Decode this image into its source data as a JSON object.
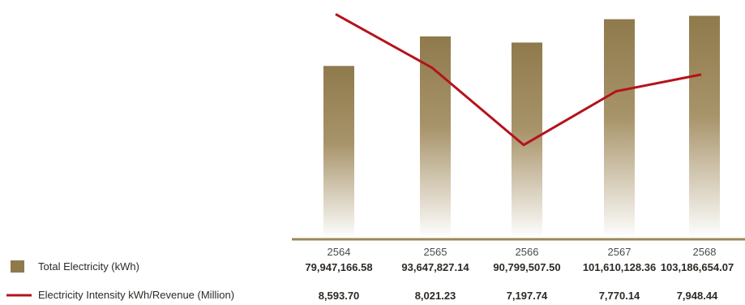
{
  "chart_data": {
    "type": "bar",
    "title": "",
    "xlabel": "",
    "ylabel": "",
    "categories": [
      "2564",
      "2565",
      "2566",
      "2567",
      "2568"
    ],
    "grid": false,
    "legend_position": "bottom-left",
    "series": [
      {
        "name": "Total Electricity (kWh)",
        "type": "bar",
        "color": "#8f7a4c",
        "values": [
          79947166.58,
          93647827.14,
          90799507.5,
          101610128.36,
          103186654.07
        ],
        "labels": [
          "79,947,166.58",
          "93,647,827.14",
          "90,799,507.50",
          "101,610,128.36",
          "103,186,654.07"
        ],
        "ylim": [
          0,
          106000000
        ]
      },
      {
        "name": "Electricity Intensity kWh/Revenue (Million)",
        "type": "line",
        "color": "#b5121b",
        "values": [
          8593.7,
          8021.23,
          7197.74,
          7770.14,
          7948.44
        ],
        "labels": [
          "8,593.70",
          "8,021.23",
          "7,197.74",
          "7,770.14",
          "7,948.44"
        ],
        "ylim": [
          6200,
          8640
        ]
      }
    ]
  }
}
